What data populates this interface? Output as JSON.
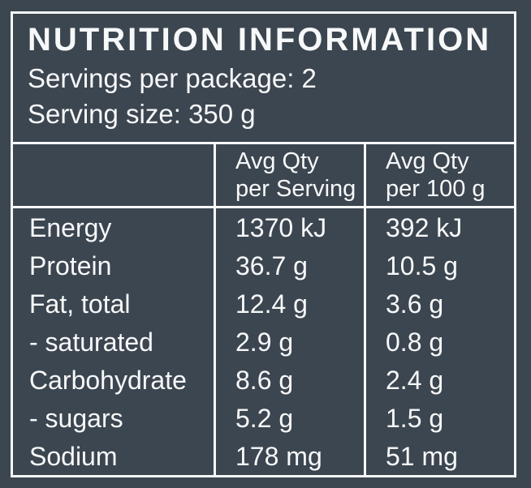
{
  "colors": {
    "background": "#3C4650",
    "text": "#F7F8F9",
    "border": "#F7F8F9"
  },
  "label": {
    "title": "NUTRITION INFORMATION",
    "servings_per_package": "Servings per package: 2",
    "serving_size": "Serving size: 350 g"
  },
  "table": {
    "header": {
      "nutrient": "",
      "per_serving_line1": "Avg Qty",
      "per_serving_line2": "per Serving",
      "per_100g_line1": "Avg Qty",
      "per_100g_line2": "per 100 g"
    },
    "rows": [
      {
        "name": "Energy",
        "per_serving": "1370 kJ",
        "per_100g": "392 kJ"
      },
      {
        "name": "Protein",
        "per_serving": "36.7 g",
        "per_100g": "10.5 g"
      },
      {
        "name": "Fat, total",
        "per_serving": "12.4 g",
        "per_100g": "3.6 g"
      },
      {
        "name": "- saturated",
        "per_serving": "2.9 g",
        "per_100g": "0.8 g"
      },
      {
        "name": "Carbohydrate",
        "per_serving": "8.6 g",
        "per_100g": "2.4 g"
      },
      {
        "name": "- sugars",
        "per_serving": "5.2 g",
        "per_100g": "1.5 g"
      },
      {
        "name": "Sodium",
        "per_serving": "178 mg",
        "per_100g": "51 mg"
      }
    ]
  }
}
